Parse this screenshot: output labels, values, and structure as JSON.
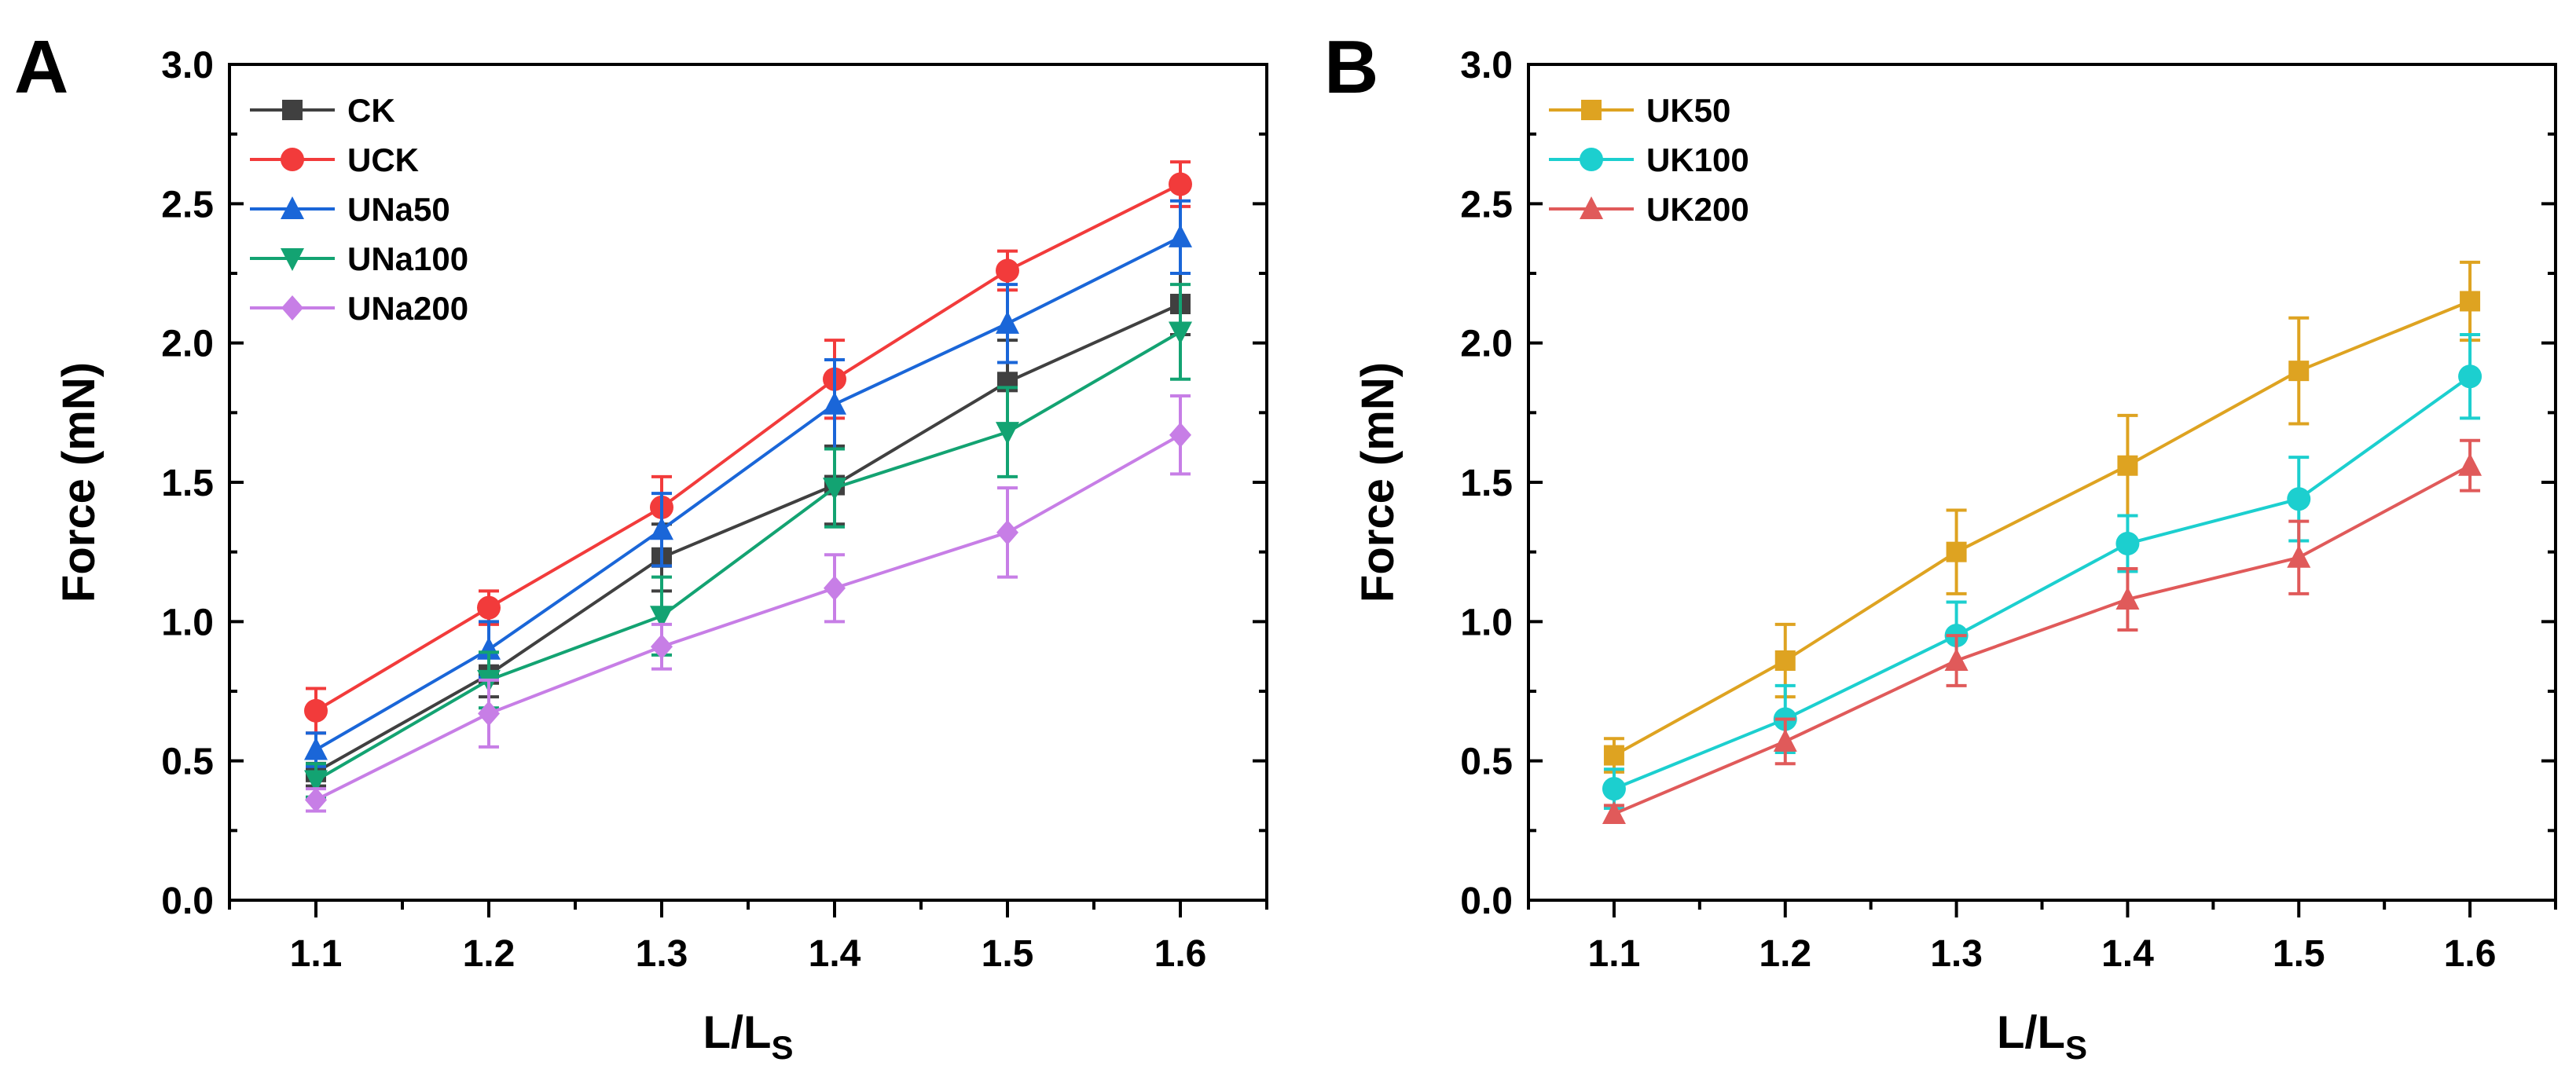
{
  "chart_data": [
    {
      "panel": "A",
      "type": "line",
      "xlabel": {
        "main": "L/L",
        "sub": "S"
      },
      "ylabel": "Force (mN)",
      "x": [
        1.1,
        1.2,
        1.3,
        1.4,
        1.5,
        1.6
      ],
      "xticks": [
        "1.1",
        "1.2",
        "1.3",
        "1.4",
        "1.5",
        "1.6"
      ],
      "xlim": [
        1.05,
        1.65
      ],
      "ylim": [
        0.0,
        3.0
      ],
      "yticks": [
        "0.0",
        "0.5",
        "1.0",
        "1.5",
        "2.0",
        "2.5",
        "3.0"
      ],
      "legend_position": "top-left",
      "series": [
        {
          "name": "CK",
          "color": "#404040",
          "marker": "square",
          "values": [
            0.46,
            0.81,
            1.23,
            1.49,
            1.86,
            2.14
          ],
          "errors": [
            0.05,
            0.08,
            0.12,
            0.14,
            0.15,
            0.11
          ]
        },
        {
          "name": "UCK",
          "color": "#f23b3b",
          "marker": "circle",
          "values": [
            0.68,
            1.05,
            1.41,
            1.87,
            2.26,
            2.57
          ],
          "errors": [
            0.08,
            0.06,
            0.11,
            0.14,
            0.07,
            0.08
          ]
        },
        {
          "name": "UNa50",
          "color": "#1a66d8",
          "marker": "triangle-up",
          "values": [
            0.54,
            0.9,
            1.33,
            1.78,
            2.07,
            2.38
          ],
          "errors": [
            0.06,
            0.1,
            0.13,
            0.16,
            0.14,
            0.13
          ]
        },
        {
          "name": "UNa100",
          "color": "#13a372",
          "marker": "triangle-down",
          "values": [
            0.43,
            0.79,
            1.02,
            1.48,
            1.68,
            2.04
          ],
          "errors": [
            0.06,
            0.1,
            0.14,
            0.14,
            0.16,
            0.17
          ]
        },
        {
          "name": "UNa200",
          "color": "#c77ee6",
          "marker": "diamond",
          "values": [
            0.36,
            0.67,
            0.91,
            1.12,
            1.32,
            1.67
          ],
          "errors": [
            0.04,
            0.12,
            0.08,
            0.12,
            0.16,
            0.14
          ]
        }
      ]
    },
    {
      "panel": "B",
      "type": "line",
      "xlabel": {
        "main": "L/L",
        "sub": "S"
      },
      "ylabel": "Force (mN)",
      "x": [
        1.1,
        1.2,
        1.3,
        1.4,
        1.5,
        1.6
      ],
      "xticks": [
        "1.1",
        "1.2",
        "1.3",
        "1.4",
        "1.5",
        "1.6"
      ],
      "xlim": [
        1.05,
        1.65
      ],
      "ylim": [
        0.0,
        3.0
      ],
      "yticks": [
        "0.0",
        "0.5",
        "1.0",
        "1.5",
        "2.0",
        "2.5",
        "3.0"
      ],
      "legend_position": "top-left",
      "series": [
        {
          "name": "UK50",
          "color": "#dea321",
          "marker": "square",
          "values": [
            0.52,
            0.86,
            1.25,
            1.56,
            1.9,
            2.15
          ],
          "errors": [
            0.06,
            0.13,
            0.15,
            0.18,
            0.19,
            0.14
          ]
        },
        {
          "name": "UK100",
          "color": "#1ccfcf",
          "marker": "circle",
          "values": [
            0.4,
            0.65,
            0.95,
            1.28,
            1.44,
            1.88
          ],
          "errors": [
            0.07,
            0.12,
            0.12,
            0.1,
            0.15,
            0.15
          ]
        },
        {
          "name": "UK200",
          "color": "#e05a5a",
          "marker": "triangle-up",
          "values": [
            0.31,
            0.57,
            0.86,
            1.08,
            1.23,
            1.56
          ],
          "errors": [
            0.03,
            0.08,
            0.09,
            0.11,
            0.13,
            0.09
          ]
        }
      ]
    }
  ]
}
